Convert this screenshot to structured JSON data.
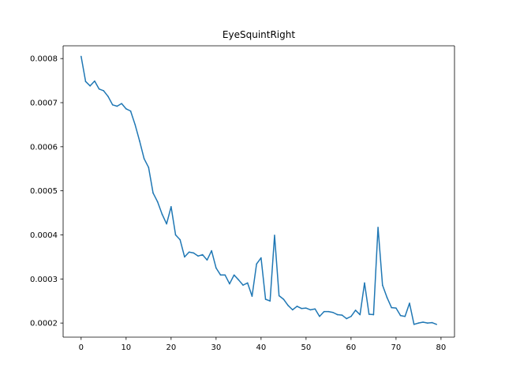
{
  "chart_data": {
    "type": "line",
    "title": "EyeSquintRight",
    "xlabel": "",
    "ylabel": "",
    "xlim": [
      -4,
      83
    ],
    "ylim": [
      0.000168,
      0.000829
    ],
    "grid": false,
    "line_color": "#1f77b4",
    "x_ticks": [
      0,
      10,
      20,
      30,
      40,
      50,
      60,
      70,
      80
    ],
    "y_ticks": [
      0.0002,
      0.0003,
      0.0004,
      0.0005,
      0.0006,
      0.0007,
      0.0008
    ],
    "y_tick_labels": [
      "0.0002",
      "0.0003",
      "0.0004",
      "0.0005",
      "0.0006",
      "0.0007",
      "0.0008"
    ],
    "series": [
      {
        "values": [
          0.000805,
          0.000748,
          0.000738,
          0.000749,
          0.000731,
          0.000727,
          0.000714,
          0.000695,
          0.000692,
          0.000698,
          0.000686,
          0.000681,
          0.00065,
          0.000613,
          0.000573,
          0.000553,
          0.000495,
          0.000475,
          0.000447,
          0.000425,
          0.000464,
          0.0004,
          0.000389,
          0.00035,
          0.000361,
          0.000359,
          0.000352,
          0.000355,
          0.000343,
          0.000364,
          0.000325,
          0.000309,
          0.000309,
          0.000289,
          0.000309,
          0.000298,
          0.000286,
          0.000291,
          0.000261,
          0.000334,
          0.000348,
          0.000254,
          0.00025,
          0.000399,
          0.000262,
          0.000254,
          0.00024,
          0.00023,
          0.000238,
          0.000233,
          0.000234,
          0.00023,
          0.000232,
          0.000215,
          0.000226,
          0.000226,
          0.000224,
          0.000219,
          0.000218,
          0.00021,
          0.000215,
          0.000229,
          0.000219,
          0.000291,
          0.00022,
          0.000219,
          0.000417,
          0.000286,
          0.000258,
          0.000235,
          0.000234,
          0.000217,
          0.000215,
          0.000245,
          0.000197,
          0.0002,
          0.000202,
          0.0002,
          0.000201,
          0.000197
        ]
      }
    ]
  }
}
